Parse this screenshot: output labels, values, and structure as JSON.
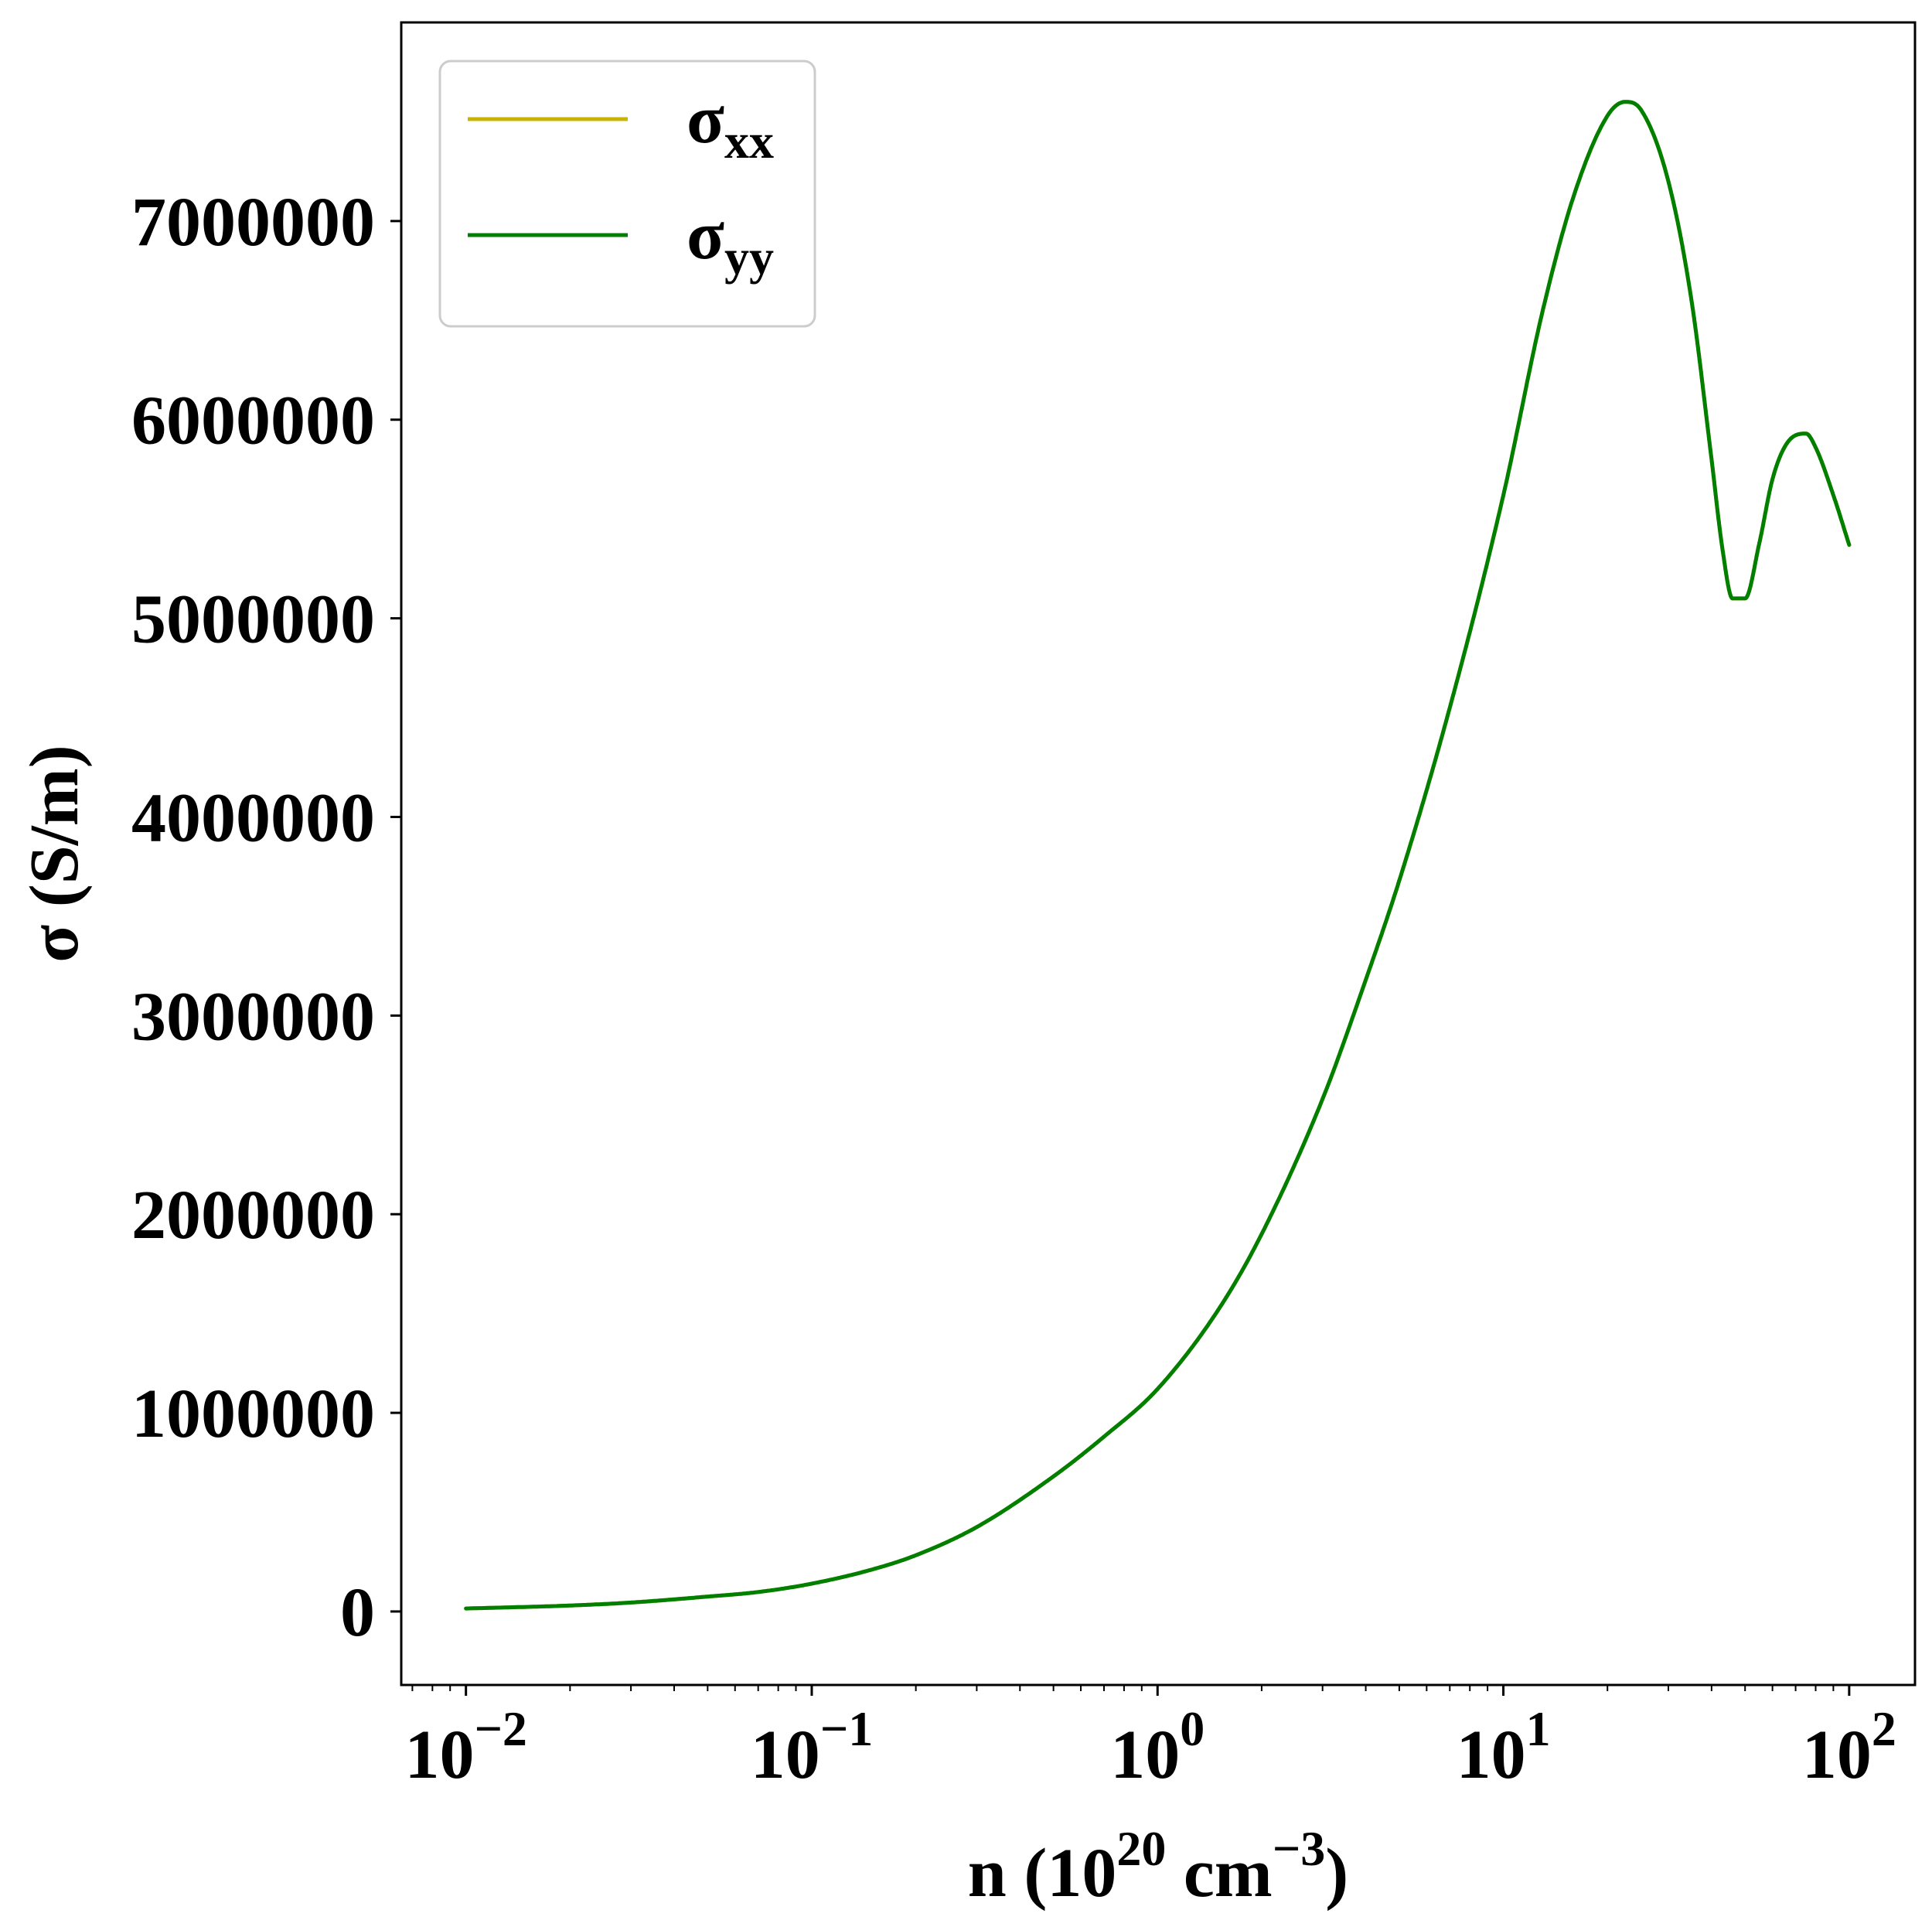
{
  "chart_data": {
    "type": "line",
    "xlabel": {
      "prefix": "n (10",
      "sup1": "20",
      "mid": " cm",
      "sup2": "−3",
      "suffix": ")"
    },
    "ylabel": "σ (S/m)",
    "xscale": "log",
    "xlim": [
      0.0065,
      155
    ],
    "ylim": [
      -370000,
      8000000
    ],
    "x_major_ticks": [
      {
        "value": 0.01,
        "base": "10",
        "exp": "−2"
      },
      {
        "value": 0.1,
        "base": "10",
        "exp": "−1"
      },
      {
        "value": 1,
        "base": "10",
        "exp": "0"
      },
      {
        "value": 10,
        "base": "10",
        "exp": "1"
      },
      {
        "value": 100,
        "base": "10",
        "exp": "2"
      }
    ],
    "y_ticks": [
      {
        "value": 0,
        "label": "0"
      },
      {
        "value": 1000000,
        "label": "1000000"
      },
      {
        "value": 2000000,
        "label": "2000000"
      },
      {
        "value": 3000000,
        "label": "3000000"
      },
      {
        "value": 4000000,
        "label": "4000000"
      },
      {
        "value": 5000000,
        "label": "5000000"
      },
      {
        "value": 6000000,
        "label": "6000000"
      },
      {
        "value": 7000000,
        "label": "7000000"
      }
    ],
    "grid": false,
    "legend_position": "top-left",
    "series": [
      {
        "name": "σ",
        "subscript": "xx",
        "color": "#c8b400",
        "x": [
          0.01,
          0.02,
          0.03,
          0.05,
          0.07,
          0.1,
          0.15,
          0.2,
          0.3,
          0.5,
          0.7,
          1,
          1.5,
          2,
          3,
          4,
          5,
          7,
          10,
          13,
          16,
          20,
          22.5,
          25,
          30,
          35,
          40,
          43,
          46,
          50,
          55,
          60,
          66,
          75,
          80,
          90,
          100
        ],
        "y": [
          15000,
          30000,
          45000,
          75000,
          98000,
          140000,
          212000,
          283000,
          425000,
          680000,
          880000,
          1120000,
          1520000,
          1900000,
          2580000,
          3180000,
          3680000,
          4550000,
          5620000,
          6550000,
          7130000,
          7530000,
          7600000,
          7560000,
          7200000,
          6600000,
          5800000,
          5350000,
          5100000,
          5100000,
          5380000,
          5700000,
          5880000,
          5930000,
          5860000,
          5620000,
          5370000
        ]
      },
      {
        "name": "σ",
        "subscript": "yy",
        "color": "#007f00",
        "x": [
          0.01,
          0.02,
          0.03,
          0.05,
          0.07,
          0.1,
          0.15,
          0.2,
          0.3,
          0.5,
          0.7,
          1,
          1.5,
          2,
          3,
          4,
          5,
          7,
          10,
          13,
          16,
          20,
          22.5,
          25,
          30,
          35,
          40,
          43,
          46,
          50,
          55,
          60,
          66,
          75,
          80,
          90,
          100
        ],
        "y": [
          15000,
          30000,
          45000,
          75000,
          98000,
          140000,
          212000,
          283000,
          425000,
          680000,
          880000,
          1120000,
          1520000,
          1900000,
          2580000,
          3180000,
          3680000,
          4550000,
          5620000,
          6550000,
          7130000,
          7530000,
          7600000,
          7560000,
          7200000,
          6600000,
          5800000,
          5350000,
          5100000,
          5100000,
          5380000,
          5700000,
          5880000,
          5930000,
          5860000,
          5620000,
          5370000
        ]
      }
    ]
  }
}
